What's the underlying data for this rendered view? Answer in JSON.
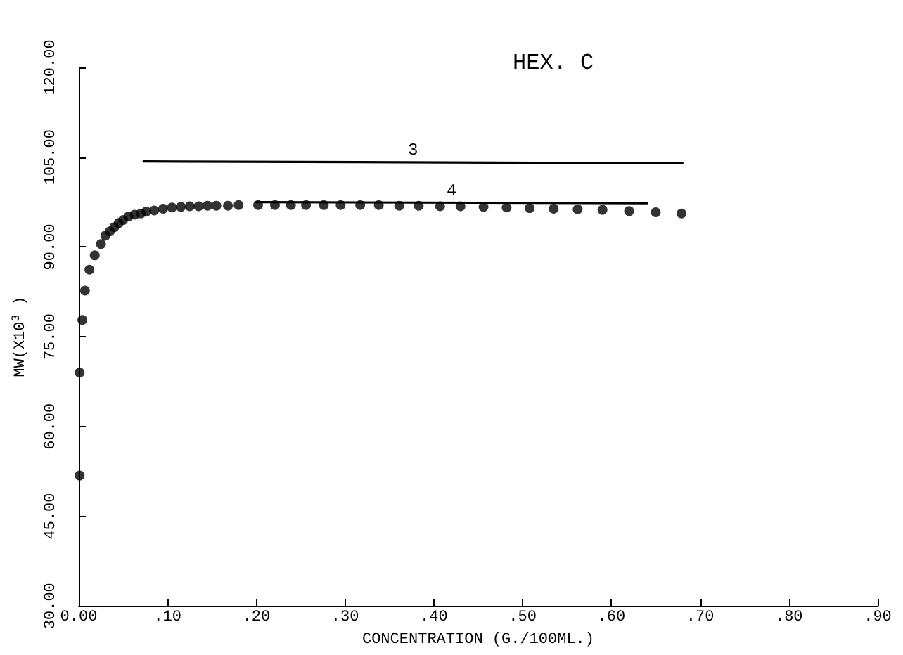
{
  "chart_data": {
    "type": "scatter",
    "title": "HEX. C",
    "xlabel": "CONCENTRATION (G./100ML.)",
    "ylabel": "MW(X10$^{3}$ )",
    "xlim": [
      0,
      0.9
    ],
    "ylim": [
      30,
      120
    ],
    "xticks": [
      {
        "value": 0,
        "label": "0.00"
      },
      {
        "value": 0.1,
        "label": ".10"
      },
      {
        "value": 0.2,
        "label": ".20"
      },
      {
        "value": 0.3,
        "label": ".30"
      },
      {
        "value": 0.4,
        "label": ".40"
      },
      {
        "value": 0.5,
        "label": ".50"
      },
      {
        "value": 0.6,
        "label": ".60"
      },
      {
        "value": 0.7,
        "label": ".70"
      },
      {
        "value": 0.8,
        "label": ".80"
      },
      {
        "value": 0.9,
        "label": ".90"
      }
    ],
    "yticks": [
      {
        "value": 30,
        "label": "30.00"
      },
      {
        "value": 45,
        "label": "45.00"
      },
      {
        "value": 60,
        "label": "60.00"
      },
      {
        "value": 75,
        "label": "75.00"
      },
      {
        "value": 90,
        "label": "90.00"
      },
      {
        "value": 105,
        "label": "105.00"
      },
      {
        "value": 120,
        "label": "120.00"
      }
    ],
    "grid": false,
    "legend": false,
    "marker": "circle",
    "series": [
      {
        "color": "#000000",
        "x": [
          0.001,
          0.001,
          0.004,
          0.007,
          0.012,
          0.018,
          0.025,
          0.03,
          0.035,
          0.04,
          0.045,
          0.05,
          0.056,
          0.063,
          0.07,
          0.076,
          0.085,
          0.095,
          0.105,
          0.115,
          0.125,
          0.135,
          0.145,
          0.155,
          0.168,
          0.18,
          0.202,
          0.221,
          0.239,
          0.256,
          0.276,
          0.295,
          0.317,
          0.338,
          0.361,
          0.383,
          0.407,
          0.43,
          0.456,
          0.482,
          0.508,
          0.535,
          0.562,
          0.59,
          0.62,
          0.65,
          0.679
        ],
        "values": [
          51.8,
          69,
          77.8,
          82.7,
          86.2,
          88.6,
          90.5,
          91.9,
          92.6,
          93.3,
          94,
          94.5,
          95.1,
          95.4,
          95.6,
          95.9,
          96.1,
          96.4,
          96.6,
          96.7,
          96.8,
          96.8,
          96.9,
          96.9,
          96.9,
          97,
          97,
          97,
          97,
          97,
          97,
          97,
          97,
          97,
          96.9,
          96.9,
          96.8,
          96.8,
          96.7,
          96.6,
          96.5,
          96.4,
          96.3,
          96.2,
          96,
          95.8,
          95.6
        ]
      },
      {
        "type": "line",
        "name": "3",
        "marker": "none",
        "color": "#000000",
        "x": [
          0.073,
          0.68
        ],
        "values": [
          104.3,
          104
        ]
      },
      {
        "type": "line",
        "name": "4",
        "marker": "none",
        "color": "#000000",
        "x": [
          0.2,
          0.64
        ],
        "values": [
          97.5,
          97.3
        ]
      }
    ],
    "line_style": "solid"
  }
}
